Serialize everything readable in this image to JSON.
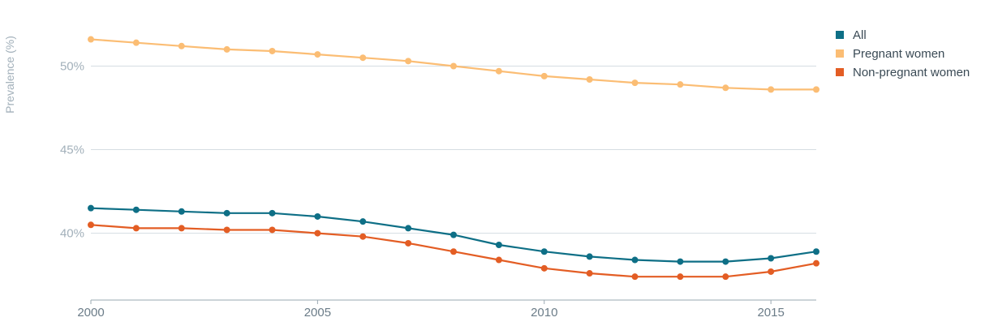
{
  "chart_data": {
    "type": "line",
    "title": "",
    "xlabel": "",
    "ylabel": "Prevalence (%)",
    "x": [
      2000,
      2001,
      2002,
      2003,
      2004,
      2005,
      2006,
      2007,
      2008,
      2009,
      2010,
      2011,
      2012,
      2013,
      2014,
      2015,
      2016
    ],
    "xlim": [
      2000,
      2016
    ],
    "ylim": [
      36,
      52.5
    ],
    "xticks": [
      {
        "value": 2000,
        "label": "2000"
      },
      {
        "value": 2005,
        "label": "2005"
      },
      {
        "value": 2010,
        "label": "2010"
      },
      {
        "value": 2015,
        "label": "2015"
      }
    ],
    "yticks": [
      {
        "value": 40,
        "label": "40%"
      },
      {
        "value": 45,
        "label": "45%"
      },
      {
        "value": 50,
        "label": "50%"
      }
    ],
    "grid": true,
    "legend_position": "top-right",
    "series": [
      {
        "name": "All",
        "color": "#0e6f86",
        "values": [
          41.5,
          41.4,
          41.3,
          41.2,
          41.2,
          41.0,
          40.7,
          40.3,
          39.9,
          39.3,
          38.9,
          38.6,
          38.4,
          38.3,
          38.3,
          38.5,
          38.9
        ]
      },
      {
        "name": "Pregnant women",
        "color": "#fbbd74",
        "values": [
          51.6,
          51.4,
          51.2,
          51.0,
          50.9,
          50.7,
          50.5,
          50.3,
          50.0,
          49.7,
          49.4,
          49.2,
          49.0,
          48.9,
          48.7,
          48.6,
          48.6
        ]
      },
      {
        "name": "Non-pregnant women",
        "color": "#e35d24",
        "values": [
          40.5,
          40.3,
          40.3,
          40.2,
          40.2,
          40.0,
          39.8,
          39.4,
          38.9,
          38.4,
          37.9,
          37.6,
          37.4,
          37.4,
          37.4,
          37.7,
          38.2
        ]
      }
    ]
  }
}
